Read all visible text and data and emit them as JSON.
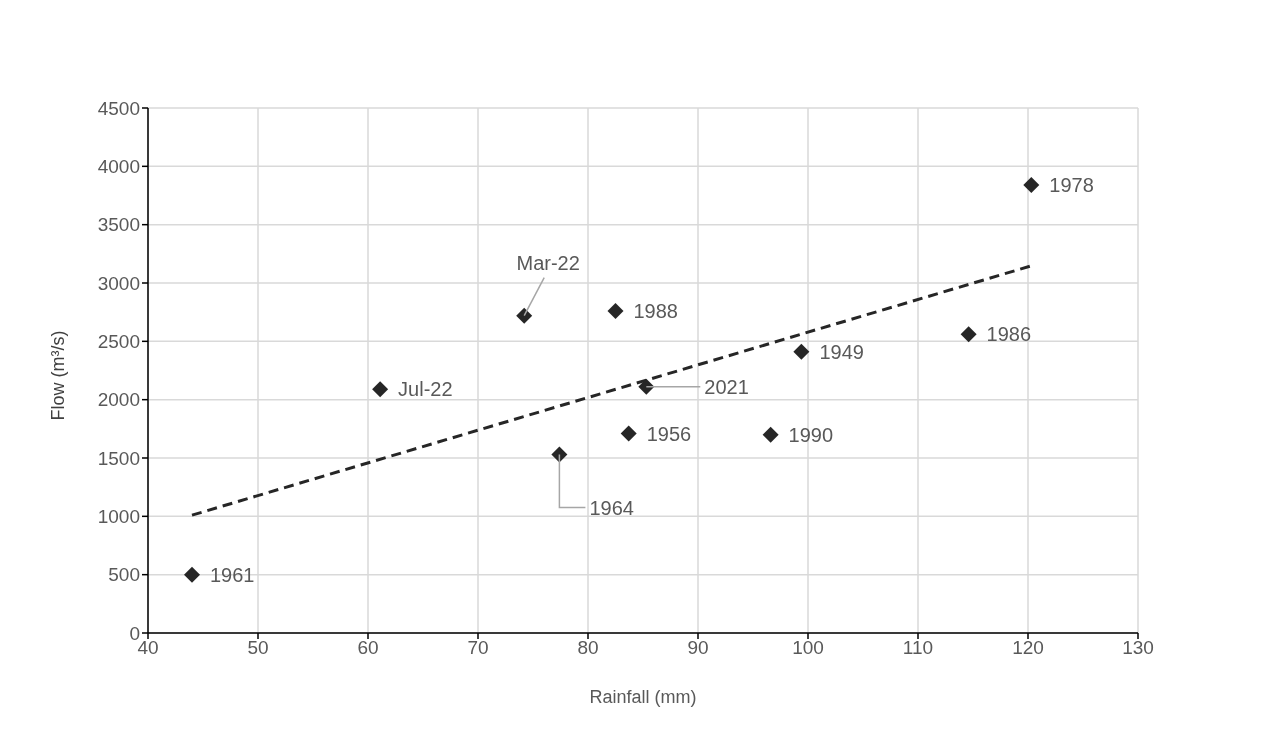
{
  "chart_data": {
    "type": "scatter",
    "xlabel": "Rainfall (mm)",
    "ylabel": "Flow (m³/s)",
    "series": [
      {
        "color": "#262626",
        "marker": "diamond",
        "x": [
          44.0,
          61.1,
          74.2,
          77.4,
          82.5,
          83.7,
          85.3,
          99.4,
          96.6,
          114.6,
          120.3
        ],
        "values": [
          500,
          2090,
          2720,
          1530,
          2760,
          1710,
          2110,
          2410,
          1700,
          2560,
          3840
        ]
      },
      {
        "type": "line",
        "color": "#262626",
        "line_style": "dashed",
        "marker": "none",
        "x": [
          44.0,
          120.4
        ],
        "values": [
          1010,
          3150
        ]
      }
    ],
    "annotations": [
      {
        "text": "1961",
        "x": 44.0,
        "y": 500
      },
      {
        "text": "Jul-22",
        "x": 61.1,
        "y": 2090
      },
      {
        "text": "Mar-22",
        "x": 74.2,
        "y": 2720
      },
      {
        "text": "1964",
        "x": 77.4,
        "y": 1530
      },
      {
        "text": "1988",
        "x": 82.5,
        "y": 2760
      },
      {
        "text": "1956",
        "x": 83.7,
        "y": 1710
      },
      {
        "text": "2021",
        "x": 85.3,
        "y": 2110
      },
      {
        "text": "1949",
        "x": 99.4,
        "y": 2410
      },
      {
        "text": "1990",
        "x": 96.6,
        "y": 1700
      },
      {
        "text": "1986",
        "x": 114.6,
        "y": 2560
      },
      {
        "text": "1978",
        "x": 120.3,
        "y": 3840
      }
    ],
    "xlim": [
      40,
      130
    ],
    "xticks": [
      40,
      50,
      60,
      70,
      80,
      90,
      100,
      110,
      120,
      130
    ],
    "ylim": [
      0,
      4500
    ],
    "yticks": [
      0,
      500,
      1000,
      1500,
      2000,
      2500,
      3000,
      3500,
      4000,
      4500
    ],
    "grid": true
  }
}
